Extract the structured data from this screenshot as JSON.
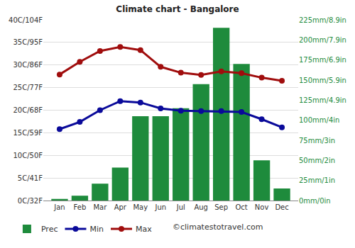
{
  "chart_data": {
    "type": "bar",
    "title": "Climate chart - Bangalore",
    "categories": [
      "Jan",
      "Feb",
      "Mar",
      "Apr",
      "May",
      "Jun",
      "Jul",
      "Aug",
      "Sep",
      "Oct",
      "Nov",
      "Dec"
    ],
    "series": [
      {
        "name": "Prec",
        "type": "bar",
        "axis": "y2",
        "color": "#1e8b3c",
        "values": [
          2,
          6,
          21,
          41,
          105,
          105,
          115,
          145,
          215,
          170,
          50,
          15
        ]
      },
      {
        "name": "Min",
        "type": "line",
        "color": "#0a0a9a",
        "marker": "circle",
        "line_style": "solid",
        "values": [
          15.8,
          17.4,
          20,
          22,
          21.7,
          20.4,
          19.9,
          19.8,
          19.8,
          19.6,
          18,
          16.2
        ]
      },
      {
        "name": "Max",
        "type": "line",
        "color": "#a00d0d",
        "marker": "circle",
        "line_style": "solid",
        "values": [
          27.9,
          30.7,
          33.1,
          34,
          33.3,
          29.6,
          28.3,
          27.8,
          28.6,
          28.2,
          27.2,
          26.5
        ]
      }
    ],
    "ylim": [
      0,
      40
    ],
    "yticks": [
      {
        "value": 0,
        "label": "0C/32F"
      },
      {
        "value": 5,
        "label": "5C/41F"
      },
      {
        "value": 10,
        "label": "10C/50F"
      },
      {
        "value": 15,
        "label": "15C/59F"
      },
      {
        "value": 20,
        "label": "20C/68F"
      },
      {
        "value": 25,
        "label": "25C/77F"
      },
      {
        "value": 30,
        "label": "30C/86F"
      },
      {
        "value": 35,
        "label": "35C/95F"
      },
      {
        "value": 40,
        "label": "40C/104F"
      }
    ],
    "y2lim": [
      0,
      225
    ],
    "y2ticks": [
      {
        "value": 0,
        "label": "0mm/0in"
      },
      {
        "value": 25,
        "label": "25mm/1in"
      },
      {
        "value": 50,
        "label": "50mm/2in"
      },
      {
        "value": 75,
        "label": "75mm/3in"
      },
      {
        "value": 100,
        "label": "100mm/4in"
      },
      {
        "value": 125,
        "label": "125mm/4.9in"
      },
      {
        "value": 150,
        "label": "150mm/5.9in"
      },
      {
        "value": 175,
        "label": "175mm/6.9in"
      },
      {
        "value": 200,
        "label": "200mm/7.9in"
      },
      {
        "value": 225,
        "label": "225mm/8.9in"
      }
    ],
    "grid": true,
    "legend": "bottom",
    "annotations": [
      {
        "text": "©climatestotravel.com"
      }
    ]
  }
}
